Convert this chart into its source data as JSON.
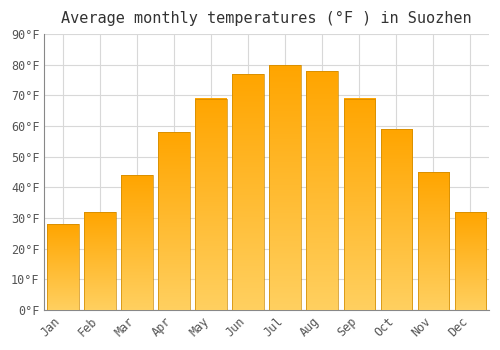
{
  "title": "Average monthly temperatures (°F ) in Suozhen",
  "months": [
    "Jan",
    "Feb",
    "Mar",
    "Apr",
    "May",
    "Jun",
    "Jul",
    "Aug",
    "Sep",
    "Oct",
    "Nov",
    "Dec"
  ],
  "values": [
    28,
    32,
    44,
    58,
    69,
    77,
    80,
    78,
    69,
    59,
    45,
    32
  ],
  "bar_color_top": "#FFA500",
  "bar_color_bottom": "#FFD060",
  "background_color": "#ffffff",
  "grid_color": "#d8d8d8",
  "ylim": [
    0,
    90
  ],
  "yticks": [
    0,
    10,
    20,
    30,
    40,
    50,
    60,
    70,
    80,
    90
  ],
  "ytick_labels": [
    "0°F",
    "10°F",
    "20°F",
    "30°F",
    "40°F",
    "50°F",
    "60°F",
    "70°F",
    "80°F",
    "90°F"
  ],
  "title_fontsize": 11,
  "tick_fontsize": 8.5,
  "bar_width": 0.85
}
